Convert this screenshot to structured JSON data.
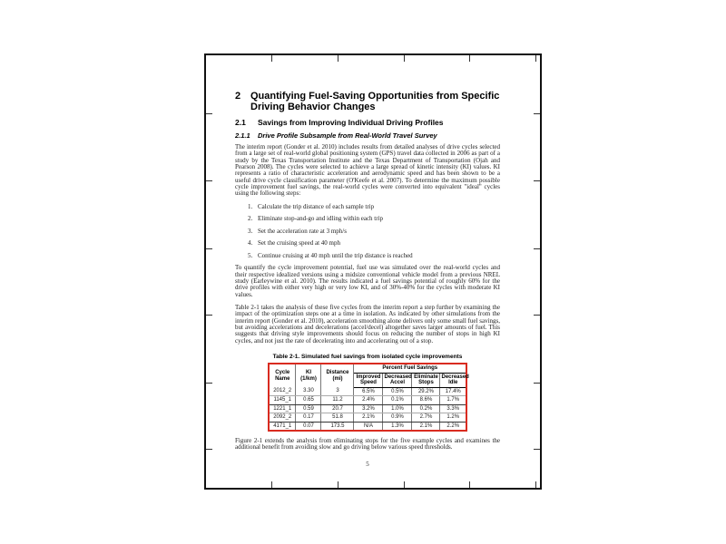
{
  "accent_red": "#d92b20",
  "doc": {
    "h1_number": "2",
    "h1_title": "Quantifying Fuel-Saving Opportunities from Specific Driving Behavior Changes",
    "h2_number": "2.1",
    "h2_title": "Savings from Improving Individual Driving Profiles",
    "h3_number": "2.1.1",
    "h3_title": "Drive Profile Subsample from Real-World Travel Survey",
    "paragraph_1": "The interim report (Gonder et al. 2010) includes results from detailed analyses of drive cycles selected from a large set of real-world global positioning system (GPS) travel data collected in 2006 as part of a study by the Texas Transportation Institute and the Texas Department of Transportation (Ojah and Pearson 2008). The cycles were selected to achieve a large spread of kinetic intensity (KI) values. KI represents a ratio of characteristic acceleration and aerodynamic speed and has been shown to be a useful drive cycle classification parameter (O'Keefe et al. 2007). To determine the maximum possible cycle improvement fuel savings, the real-world cycles were converted into equivalent \"ideal\" cycles using the following steps:",
    "steps": [
      {
        "num": "1.",
        "text": "Calculate the trip distance of each sample trip"
      },
      {
        "num": "2.",
        "text": "Eliminate stop-and-go and idling within each trip"
      },
      {
        "num": "3.",
        "text": "Set the acceleration rate at 3 mph/s"
      },
      {
        "num": "4.",
        "text": "Set the cruising speed at 40 mph"
      },
      {
        "num": "5.",
        "text": "Continue cruising at 40 mph until the trip distance is reached"
      }
    ],
    "paragraph_2": "To quantify the cycle improvement potential, fuel use was simulated over the real-world cycles and their respective idealized versions using a midsize conventional vehicle model from a previous NREL study (Earleywine et al. 2010). The results indicated a fuel savings potential of roughly 60% for the drive profiles with either very high or very low KI, and of 30%-40% for the cycles with moderate KI values.",
    "paragraph_3": "Table 2-1 takes the analysis of these five cycles from the interim report a step further by examining the impact of the optimization steps one at a time in isolation. As indicated by other simulations from the interim report (Gonder et al. 2010), acceleration smoothing alone delivers only some small fuel savings, but avoiding accelerations and decele­rations (accel/decel) altogether saves larger amounts of fuel. This suggests that driving style improvements should focus on reducing the number of stops in high KI cycles, and not just the rate of decelerating into and accelerating out of a stop.",
    "table": {
      "caption": "Table 2-1. Simulated fuel savings from isolated cycle improvements",
      "headers": [
        "Cycle\nName",
        "KI\n(1/km)",
        "Distance\n(mi)"
      ],
      "span_header": "Percent Fuel Savings",
      "sub_headers": [
        "Improved\nSpeed",
        "Decreased\nAccel",
        "Eliminate\nStops",
        "Decreased\nIdle"
      ],
      "rows": [
        [
          "2012_2",
          "3.30",
          "3",
          "6.5%",
          "0.5%",
          "29.2%",
          "17.4%"
        ],
        [
          "1145_1",
          "0.65",
          "11.2",
          "2.4%",
          "0.1%",
          "8.6%",
          "1.7%"
        ],
        [
          "1221_1",
          "0.59",
          "20.7",
          "3.2%",
          "1.0%",
          "0.2%",
          "3.3%"
        ],
        [
          "2092_2",
          "0.17",
          "51.8",
          "2.1%",
          "0.9%",
          "2.7%",
          "1.2%"
        ],
        [
          "4171_1",
          "0.07",
          "173.5",
          "N/A",
          "1.3%",
          "2.1%",
          "2.2%"
        ]
      ]
    },
    "paragraph_4": "Figure 2-1 extends the analysis from eliminating stops for the five example cycles and examines the additional benefit from avoiding slow and go driving below various speed thresholds.",
    "page_number": "5"
  }
}
